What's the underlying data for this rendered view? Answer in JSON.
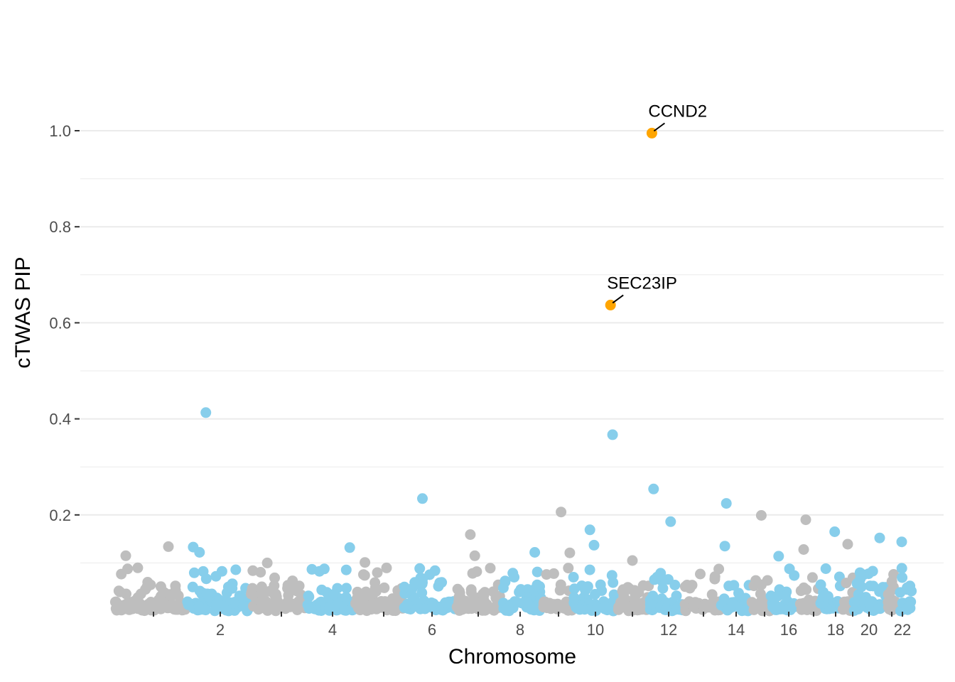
{
  "chart_data": {
    "type": "scatter",
    "title": "",
    "xlabel": "Chromosome",
    "ylabel": "cTWAS PIP",
    "ylim": [
      0,
      1.0
    ],
    "y_ticks": [
      "0.2",
      "0.4",
      "0.6",
      "0.8",
      "1.0"
    ],
    "y_tick_values": [
      0.2,
      0.4,
      0.6,
      0.8,
      1.0
    ],
    "x_tick_labels": [
      "",
      "2",
      "",
      "4",
      "",
      "6",
      "",
      "8",
      "",
      "10",
      "",
      "12",
      "",
      "14",
      "",
      "16",
      "",
      "18",
      "",
      "20",
      "",
      "22"
    ],
    "grid": true,
    "legend": "none",
    "colors": {
      "odd": "#bebebe",
      "even": "#87ceeb",
      "highlight": "#ffa500",
      "grid": "#ebebeb"
    },
    "chromosomes": [
      1,
      2,
      3,
      4,
      5,
      6,
      7,
      8,
      9,
      10,
      11,
      12,
      13,
      14,
      15,
      16,
      17,
      18,
      19,
      20,
      21,
      22
    ],
    "highlighted": [
      {
        "gene": "CCND2",
        "chr": 12,
        "pos": 0.05,
        "pip": 0.995
      },
      {
        "gene": "SEC23IP",
        "chr": 10,
        "pos": 0.9,
        "pip": 0.637
      }
    ],
    "notable_points": [
      {
        "chr": 2,
        "pos": 0.3,
        "pip": 0.413
      },
      {
        "chr": 10,
        "pos": 0.95,
        "pip": 0.367
      },
      {
        "chr": 12,
        "pos": 0.1,
        "pip": 0.254
      },
      {
        "chr": 6,
        "pos": 0.35,
        "pip": 0.234
      },
      {
        "chr": 14,
        "pos": 0.2,
        "pip": 0.224
      },
      {
        "chr": 9,
        "pos": 0.6,
        "pip": 0.206
      },
      {
        "chr": 15,
        "pos": 0.55,
        "pip": 0.199
      },
      {
        "chr": 17,
        "pos": 0.4,
        "pip": 0.19
      },
      {
        "chr": 12,
        "pos": 0.6,
        "pip": 0.186
      },
      {
        "chr": 10,
        "pos": 0.4,
        "pip": 0.169
      },
      {
        "chr": 18,
        "pos": 0.7,
        "pip": 0.165
      },
      {
        "chr": 7,
        "pos": 0.3,
        "pip": 0.159
      },
      {
        "chr": 20,
        "pos": 0.8,
        "pip": 0.152
      },
      {
        "chr": 22,
        "pos": 0.3,
        "pip": 0.144
      },
      {
        "chr": 19,
        "pos": 0.5,
        "pip": 0.139
      },
      {
        "chr": 10,
        "pos": 0.5,
        "pip": 0.137
      },
      {
        "chr": 14,
        "pos": 0.15,
        "pip": 0.135
      },
      {
        "chr": 1,
        "pos": 0.75,
        "pip": 0.134
      },
      {
        "chr": 2,
        "pos": 0.1,
        "pip": 0.133
      },
      {
        "chr": 4,
        "pos": 0.9,
        "pip": 0.132
      },
      {
        "chr": 17,
        "pos": 0.3,
        "pip": 0.128
      },
      {
        "chr": 2,
        "pos": 0.2,
        "pip": 0.122
      },
      {
        "chr": 8,
        "pos": 0.8,
        "pip": 0.122
      },
      {
        "chr": 9,
        "pos": 0.9,
        "pip": 0.121
      },
      {
        "chr": 1,
        "pos": 0.15,
        "pip": 0.115
      },
      {
        "chr": 16,
        "pos": 0.3,
        "pip": 0.114
      },
      {
        "chr": 7,
        "pos": 0.4,
        "pip": 0.115
      },
      {
        "chr": 11,
        "pos": 0.5,
        "pip": 0.105
      },
      {
        "chr": 3,
        "pos": 0.3,
        "pip": 0.1
      },
      {
        "chr": 5,
        "pos": 0.2,
        "pip": 0.101
      }
    ]
  }
}
